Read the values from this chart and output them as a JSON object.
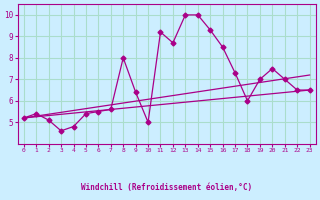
{
  "xlabel": "Windchill (Refroidissement éolien,°C)",
  "ylabel": "",
  "bg_color": "#cceeff",
  "line_color": "#aa0088",
  "grid_color": "#aaddcc",
  "x_data": [
    0,
    1,
    2,
    3,
    4,
    5,
    6,
    7,
    8,
    9,
    10,
    11,
    12,
    13,
    14,
    15,
    16,
    17,
    18,
    19,
    20,
    21,
    22,
    23
  ],
  "y_data": [
    5.2,
    5.4,
    5.1,
    4.6,
    4.8,
    5.4,
    5.5,
    5.6,
    8.0,
    6.4,
    5.0,
    9.2,
    8.7,
    10.0,
    10.0,
    9.3,
    8.5,
    7.3,
    6.0,
    7.0,
    7.5,
    7.0,
    6.5,
    6.5
  ],
  "trend1_x": [
    0,
    23
  ],
  "trend1_y": [
    5.2,
    6.5
  ],
  "trend2_x": [
    0,
    23
  ],
  "trend2_y": [
    5.2,
    7.2
  ],
  "ylim": [
    4.0,
    10.5
  ],
  "xlim": [
    -0.5,
    23.5
  ]
}
